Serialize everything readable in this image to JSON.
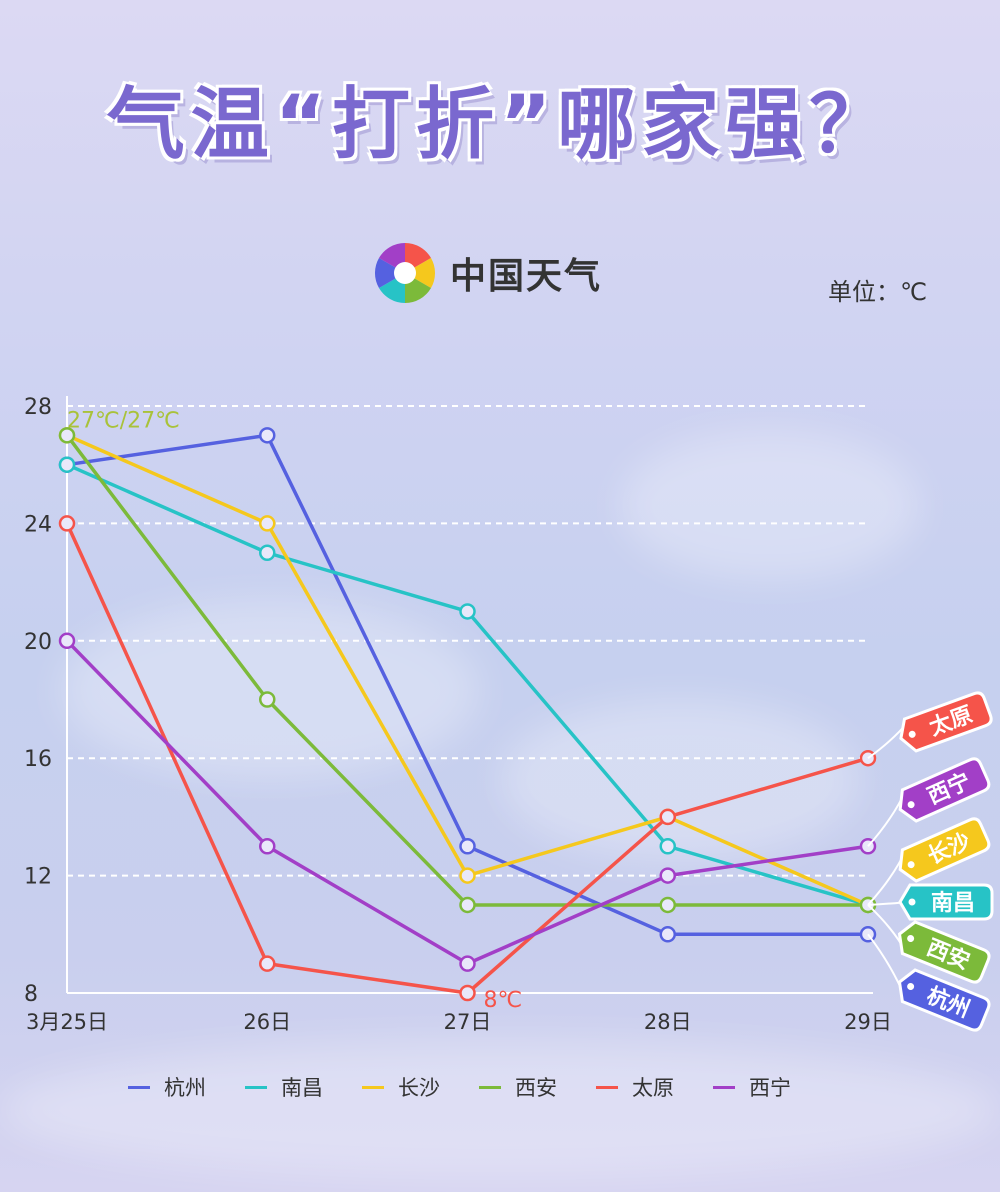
{
  "title": "气温“打折”哪家强？",
  "brand": {
    "name": "中国天气",
    "logo_icon": "pinwheel-logo-icon"
  },
  "unit": "单位：℃",
  "colors": {
    "杭州": "#5561e0",
    "南昌": "#27c3c6",
    "长沙": "#f5c81d",
    "西安": "#7cba3a",
    "太原": "#f5544a",
    "西宁": "#a23fc7"
  },
  "chart_data": {
    "type": "line",
    "x": [
      "3月25日",
      "26日",
      "27日",
      "28日",
      "29日"
    ],
    "ylim": [
      8,
      28
    ],
    "yticks": [
      "8",
      "12",
      "16",
      "20",
      "24",
      "28"
    ],
    "grid": true,
    "legend_position": "bottom",
    "series": [
      {
        "name": "杭州",
        "values": [
          26,
          27,
          13,
          10,
          10
        ]
      },
      {
        "name": "南昌",
        "values": [
          26,
          23,
          21,
          13,
          11
        ]
      },
      {
        "name": "长沙",
        "values": [
          27,
          24,
          12,
          14,
          11
        ]
      },
      {
        "name": "西安",
        "values": [
          27,
          18,
          11,
          11,
          11
        ]
      },
      {
        "name": "太原",
        "values": [
          24,
          9,
          8,
          14,
          16
        ]
      },
      {
        "name": "西宁",
        "values": [
          20,
          13,
          9,
          12,
          13
        ]
      }
    ],
    "annotations": [
      {
        "text": "27℃/27℃",
        "series": "西安",
        "index": 0
      },
      {
        "text": "8℃",
        "series": "太原",
        "index": 2
      }
    ],
    "end_tags": [
      "太原",
      "西宁",
      "长沙",
      "南昌",
      "西安",
      "杭州"
    ]
  }
}
